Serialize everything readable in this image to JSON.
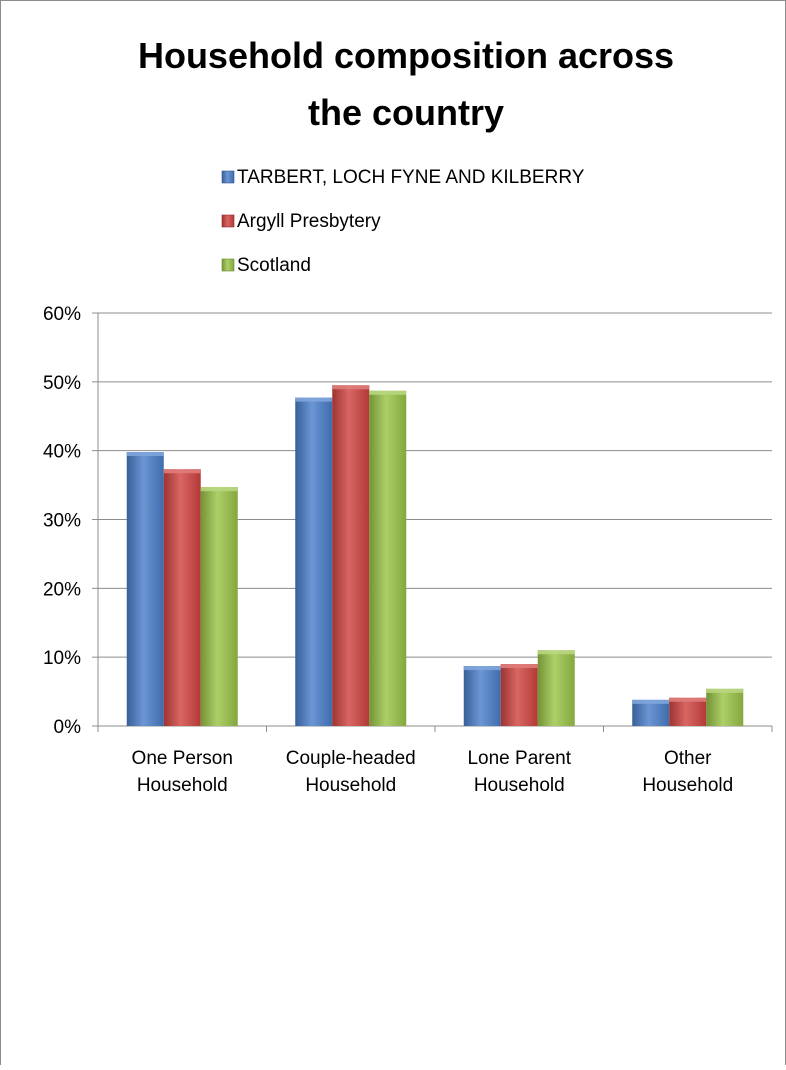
{
  "chart_data": {
    "type": "bar",
    "title_lines": [
      "Household composition across",
      "the country"
    ],
    "categories": [
      [
        "One Person",
        "Household"
      ],
      [
        "Couple-headed",
        "Household"
      ],
      [
        "Lone Parent",
        "Household"
      ],
      [
        "Other",
        "Household"
      ]
    ],
    "series": [
      {
        "name": "TARBERT, LOCH FYNE AND KILBERRY",
        "color": "#4a7fcb",
        "values": [
          39.8,
          47.7,
          8.7,
          3.8
        ]
      },
      {
        "name": "Argyll Presbytery",
        "color": "#d14441",
        "values": [
          37.3,
          49.5,
          9.0,
          4.1
        ]
      },
      {
        "name": "Scotland",
        "color": "#9bc448",
        "values": [
          34.7,
          48.7,
          11.0,
          5.4
        ]
      }
    ],
    "y_ticks": [
      "0%",
      "10%",
      "20%",
      "30%",
      "40%",
      "50%",
      "60%"
    ],
    "ylim": [
      0,
      60
    ],
    "ylabel": "",
    "xlabel": "",
    "grid": true,
    "legend_position": "top"
  }
}
